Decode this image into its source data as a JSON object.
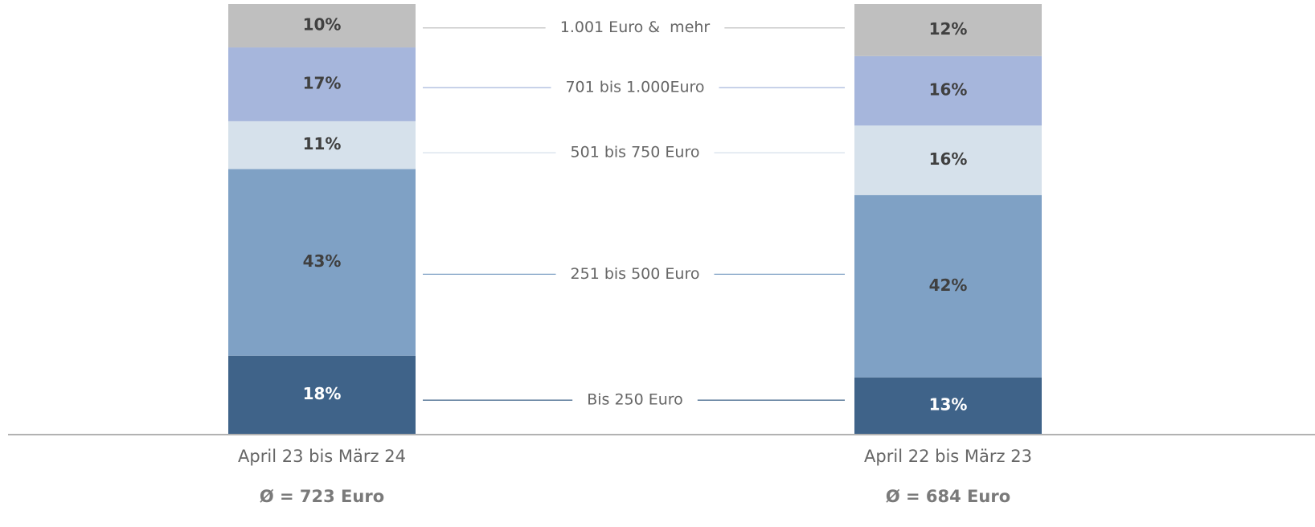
{
  "chart_data": {
    "type": "stacked_bar",
    "categories": [
      "April 23 bis März 24",
      "April 22 bis März 23"
    ],
    "annotations": [
      "Ø = 723 Euro",
      "Ø = 684 Euro"
    ],
    "series": [
      {
        "name": "Bis 250 Euro",
        "color": "#3f6389",
        "values": [
          18,
          13
        ],
        "value_labels": [
          "18%",
          "13%"
        ]
      },
      {
        "name": "251 bis 500 Euro",
        "color": "#7fa1c5",
        "values": [
          43,
          42
        ],
        "value_labels": [
          "43%",
          "42%"
        ]
      },
      {
        "name": "501 bis 750 Euro",
        "color": "#d6e1eb",
        "values": [
          11,
          16
        ],
        "value_labels": [
          "11%",
          "16%"
        ]
      },
      {
        "name": "701 bis 1.000Euro",
        "color": "#a6b6dc",
        "values": [
          17,
          16
        ],
        "value_labels": [
          "17%",
          "16%"
        ]
      },
      {
        "name": "1.001 Euro &  mehr",
        "color": "#bfbfbf",
        "values": [
          10,
          12
        ],
        "value_labels": [
          "10%",
          "12%"
        ]
      }
    ],
    "ylim": [
      0,
      99
    ]
  }
}
